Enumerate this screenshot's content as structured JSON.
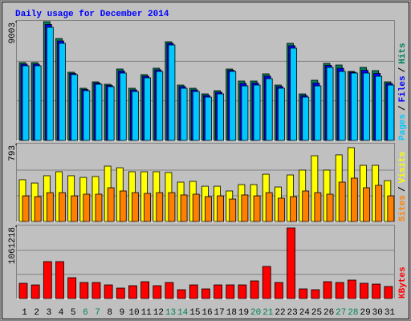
{
  "chart_data": [
    {
      "type": "bar",
      "title": "Daily usage for December 2014",
      "legend_separator": "/",
      "ylim": [
        0,
        9003
      ],
      "yticks": [
        9003
      ],
      "series": [
        {
          "name": "Hits",
          "color": "#00805c",
          "values": [
            5900,
            5900,
            9003,
            7725,
            5171,
            3954,
            4441,
            4258,
            5414,
            3954,
            4988,
            5475,
            7482,
            4197,
            3954,
            3528,
            3772,
            5414,
            4502,
            4502,
            5049,
            4197,
            7360,
            3528,
            4562,
            5840,
            5718,
            5231,
            5536,
            5292,
            4441
          ]
        },
        {
          "name": "Files",
          "color": "#0000ff",
          "values": [
            5780,
            5780,
            8790,
            7540,
            5080,
            3860,
            4350,
            4170,
            5260,
            3830,
            4870,
            5350,
            7360,
            4080,
            3830,
            3410,
            3650,
            5320,
            4320,
            4350,
            4870,
            4080,
            7180,
            3410,
            4350,
            5690,
            5470,
            5170,
            5320,
            5080,
            4320
          ]
        },
        {
          "name": "Pages",
          "color": "#00c8ff",
          "values": [
            5658,
            5658,
            8577,
            7360,
            4988,
            3772,
            4258,
            4076,
            5110,
            3711,
            4745,
            5231,
            7239,
            3954,
            3711,
            3285,
            3528,
            5231,
            4136,
            4197,
            4684,
            3954,
            6995,
            3285,
            4136,
            5536,
            5231,
            5110,
            5110,
            4866,
            4197
          ]
        }
      ]
    },
    {
      "type": "bar",
      "ylim": [
        0,
        793
      ],
      "yticks": [
        793
      ],
      "series": [
        {
          "name": "Visits",
          "color": "#ffff00",
          "values": [
            430,
            396,
            471,
            512,
            471,
            454,
            463,
            570,
            553,
            512,
            512,
            512,
            504,
            405,
            413,
            363,
            363,
            314,
            380,
            380,
            487,
            355,
            479,
            529,
            677,
            529,
            686,
            760,
            578,
            578,
            421
          ]
        },
        {
          "name": "Sites",
          "color": "#ff8000",
          "values": [
            264,
            256,
            297,
            297,
            264,
            281,
            281,
            347,
            314,
            297,
            289,
            297,
            297,
            273,
            281,
            256,
            264,
            231,
            273,
            264,
            297,
            240,
            256,
            314,
            297,
            281,
            405,
            446,
            347,
            372,
            264
          ]
        }
      ]
    },
    {
      "type": "bar",
      "ylim": [
        0,
        1061218
      ],
      "yticks": [
        1061218
      ],
      "categories": [
        "1",
        "2",
        "3",
        "4",
        "5",
        "6",
        "7",
        "8",
        "9",
        "10",
        "11",
        "12",
        "13",
        "14",
        "15",
        "16",
        "17",
        "18",
        "19",
        "20",
        "21",
        "22",
        "23",
        "24",
        "25",
        "26",
        "27",
        "28",
        "29",
        "30",
        "31"
      ],
      "category_colors": [
        "#000000",
        "#000000",
        "#000000",
        "#000000",
        "#000000",
        "#00805c",
        "#00805c",
        "#000000",
        "#000000",
        "#000000",
        "#000000",
        "#000000",
        "#00805c",
        "#00805c",
        "#000000",
        "#000000",
        "#000000",
        "#000000",
        "#000000",
        "#00805c",
        "#00805c",
        "#000000",
        "#000000",
        "#000000",
        "#000000",
        "#000000",
        "#00805c",
        "#00805c",
        "#000000",
        "#000000",
        "#000000"
      ],
      "series": [
        {
          "name": "KBytes",
          "color": "#ff0000",
          "values": [
            224000,
            200000,
            542400,
            542400,
            306600,
            235800,
            235800,
            200400,
            153300,
            188700,
            247600,
            188700,
            235800,
            129700,
            200400,
            141500,
            200400,
            200400,
            200400,
            259400,
            471600,
            235800,
            1037600,
            141500,
            129700,
            247600,
            235800,
            271200,
            224000,
            212200,
            176900
          ]
        }
      ]
    }
  ]
}
